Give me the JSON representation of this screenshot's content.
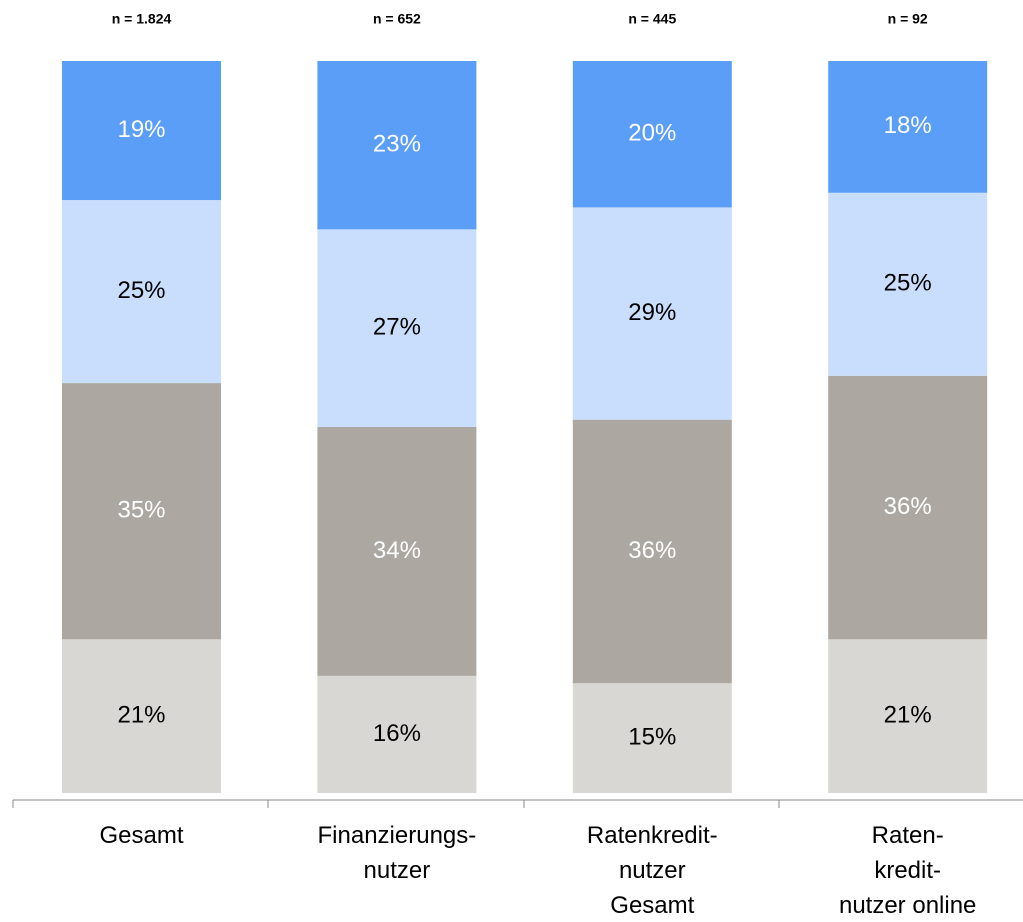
{
  "chart_data": {
    "type": "stacked_bar",
    "categories": [
      "Gesamt",
      "Finanzierungs-\nnutzer",
      "Ratenkredit-\nnutzer\nGesamt",
      "Raten-\nkredit-\nnutzer online"
    ],
    "n_labels": [
      "n = 1.824",
      "n = 652",
      "n = 445",
      "n = 92"
    ],
    "ylim": [
      0,
      100
    ],
    "series": [
      {
        "color": "#d9d7d3",
        "label_color": "#000000",
        "values": [
          21,
          16,
          15,
          21
        ],
        "value_labels": [
          "21%",
          "16%",
          "15%",
          "21%"
        ]
      },
      {
        "color": "#aca8a1",
        "label_color": "#ffffff",
        "values": [
          35,
          34,
          36,
          36
        ],
        "value_labels": [
          "35%",
          "34%",
          "36%",
          "36%"
        ]
      },
      {
        "color": "#c9defc",
        "label_color": "#000000",
        "values": [
          25,
          27,
          29,
          25
        ],
        "value_labels": [
          "25%",
          "27%",
          "29%",
          "25%"
        ]
      },
      {
        "color": "#5b9ef8",
        "label_color": "#ffffff",
        "values": [
          19,
          23,
          20,
          18
        ],
        "value_labels": [
          "19%",
          "23%",
          "20%",
          "18%"
        ]
      }
    ]
  }
}
